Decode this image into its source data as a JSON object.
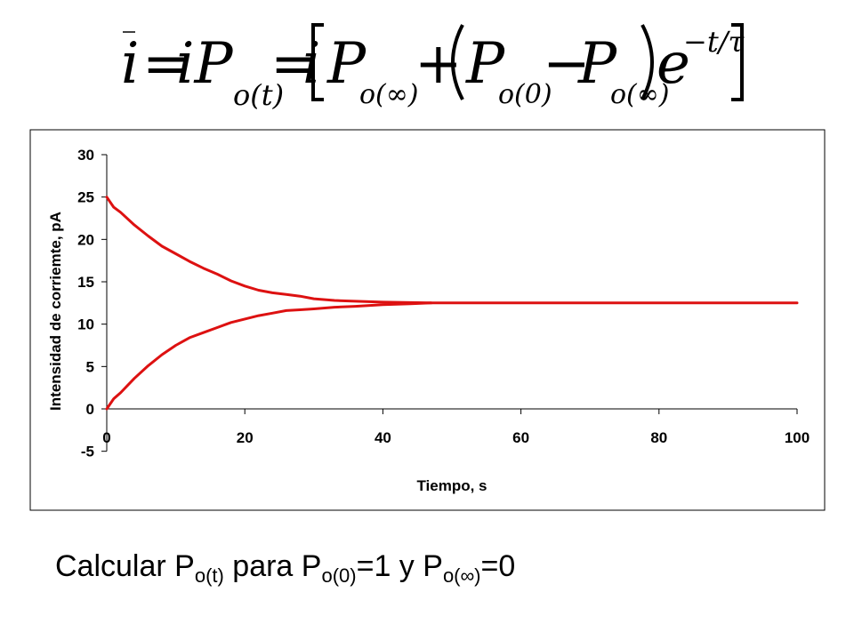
{
  "formula": {
    "lhs_var": "i",
    "eq1": "=",
    "term1_var": "iP",
    "term1_sub": "o(t)",
    "eq2": "=",
    "term2_var": "i",
    "bracket_p_inf": "P",
    "bracket_sub_inf": "o(∞)",
    "plus": "+",
    "paren_p0": "P",
    "paren_sub_0": "o(0)",
    "minus": "−",
    "paren_p_inf": "P",
    "paren_sub_inf": "o(∞)",
    "exp_base": "e",
    "exp_power": "−t/τ"
  },
  "chart_data": {
    "type": "line",
    "title": "",
    "xlabel": "Tiempo, s",
    "ylabel": "Intensidad de corriemte, pA",
    "xlim": [
      0,
      100
    ],
    "ylim": [
      -5,
      30
    ],
    "xticks": [
      "0",
      "20",
      "40",
      "60",
      "80",
      "100"
    ],
    "yticks": [
      "-5",
      "0",
      "5",
      "10",
      "15",
      "20",
      "25",
      "30"
    ],
    "grid": false,
    "legend": "none",
    "line_color": "#dd1111",
    "series": [
      {
        "x": [
          0,
          1,
          2,
          4,
          6,
          8,
          10,
          12,
          14,
          16,
          18,
          20,
          22,
          24,
          26,
          28,
          30,
          33,
          36,
          40,
          44,
          47
        ],
        "y": [
          25,
          23.8,
          23.2,
          21.7,
          20.4,
          19.2,
          18.3,
          17.4,
          16.6,
          15.9,
          15.1,
          14.5,
          14.0,
          13.7,
          13.5,
          13.3,
          13.0,
          12.8,
          12.7,
          12.6,
          12.55,
          12.5
        ]
      },
      {
        "x": [
          0,
          1,
          2,
          4,
          6,
          8,
          10,
          12,
          14,
          16,
          18,
          20,
          22,
          24,
          26,
          28,
          30,
          33,
          36,
          40,
          44,
          47,
          100
        ],
        "y": [
          0,
          1.2,
          1.9,
          3.6,
          5.1,
          6.4,
          7.5,
          8.4,
          9.0,
          9.6,
          10.2,
          10.6,
          11.0,
          11.3,
          11.6,
          11.7,
          11.8,
          12.0,
          12.1,
          12.3,
          12.4,
          12.5,
          12.5
        ]
      }
    ]
  },
  "caption": {
    "lead": "Calcular P",
    "sub1": "o(t)",
    "mid1": " para P",
    "sub2": "o(0)",
    "mid2": "=1 y P",
    "sub3": "o(∞)",
    "tail": "=0"
  }
}
